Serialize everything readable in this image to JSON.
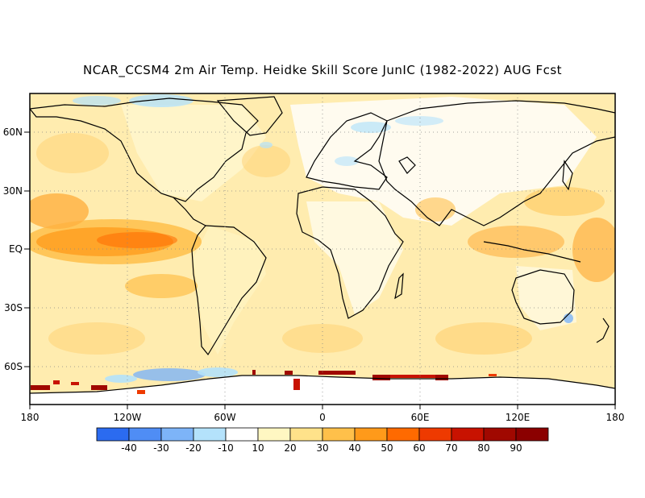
{
  "title": "NCAR_CCSM4 2m Air Temp. Heidke Skill Score JunIC (1982-2022) AUG Fcst",
  "axes": {
    "lat_labels": [
      "60N",
      "30N",
      "EQ",
      "30S",
      "60S"
    ],
    "lon_labels": [
      "180",
      "120W",
      "60W",
      "0",
      "60E",
      "120E",
      "180"
    ]
  },
  "colorbar": {
    "labels": [
      "-40",
      "-30",
      "-20",
      "-10",
      "10",
      "20",
      "30",
      "40",
      "50",
      "60",
      "70",
      "80",
      "90"
    ],
    "colors": [
      "#2b6bf0",
      "#4f8df5",
      "#7db4f8",
      "#b4e2fb",
      "#ffffff",
      "#fff7c2",
      "#ffe28a",
      "#ffc04a",
      "#ff9a1a",
      "#ff6a00",
      "#ee3a00",
      "#c81200",
      "#a00800",
      "#8b0000"
    ]
  },
  "legend_colors": {
    "land_outline": "#000000",
    "grid": "#888888"
  }
}
